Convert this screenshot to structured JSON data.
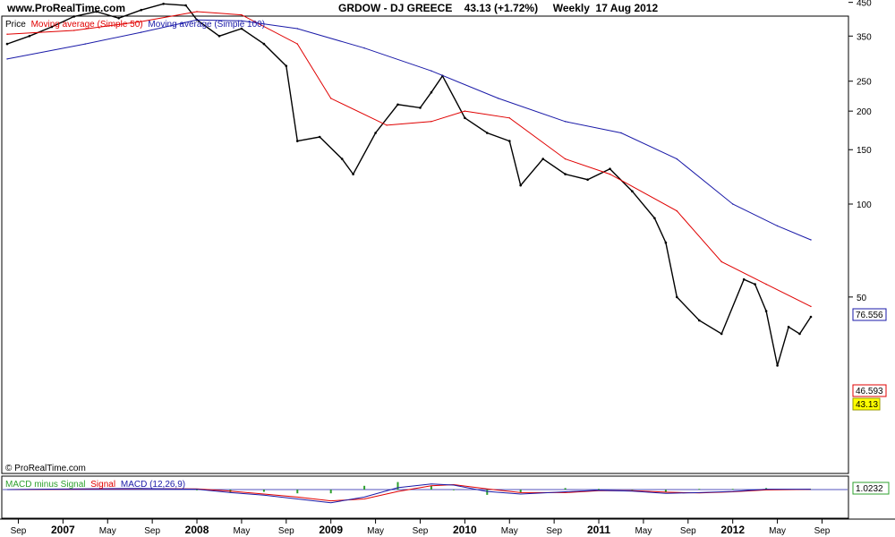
{
  "header": {
    "site": "www.ProRealTime.com",
    "title": "GRDOW - DJ GREECE    43.13 (+1.72%)     Weekly  17 Aug 2012"
  },
  "watermark": "© ProRealTime.com",
  "colors": {
    "price": "#000000",
    "ma50": "#e00000",
    "ma100": "#1a1aa8",
    "macd_line": "#1a1aa8",
    "signal_line": "#e00000",
    "macd_hist": "#2ea02e",
    "current_price_bg": "#ffff00"
  },
  "chart_data": {
    "type": "line",
    "scale": "log",
    "ylim": [
      30,
      480
    ],
    "y_ticks": [
      450,
      350,
      250,
      200,
      150,
      100,
      50
    ],
    "x_ticks": [
      "Sep",
      "2007",
      "May",
      "Sep",
      "2008",
      "May",
      "Sep",
      "2009",
      "May",
      "Sep",
      "2010",
      "May",
      "Sep",
      "2011",
      "May",
      "Sep",
      "2012",
      "May",
      "Sep"
    ],
    "legend": [
      "Price",
      "Moving average (Simple 50)",
      "Moving average (Simple 100)"
    ],
    "series": [
      {
        "name": "Price",
        "x": [
          "2006-08",
          "2006-10",
          "2006-12",
          "2007-02",
          "2007-04",
          "2007-06",
          "2007-08",
          "2007-10",
          "2007-12",
          "2008-01",
          "2008-03",
          "2008-05",
          "2008-07",
          "2008-09",
          "2008-10",
          "2008-12",
          "2009-02",
          "2009-03",
          "2009-05",
          "2009-07",
          "2009-09",
          "2009-10",
          "2009-11",
          "2010-01",
          "2010-03",
          "2010-05",
          "2010-06",
          "2010-08",
          "2010-10",
          "2010-12",
          "2011-02",
          "2011-04",
          "2011-06",
          "2011-07",
          "2011-08",
          "2011-10",
          "2011-12",
          "2012-02",
          "2012-03",
          "2012-04",
          "2012-05",
          "2012-06",
          "2012-07",
          "2012-08"
        ],
        "values": [
          330,
          350,
          375,
          405,
          420,
          400,
          425,
          445,
          440,
          395,
          350,
          370,
          330,
          280,
          160,
          165,
          140,
          125,
          170,
          210,
          205,
          230,
          260,
          190,
          170,
          160,
          115,
          140,
          125,
          120,
          130,
          110,
          90,
          75,
          50,
          42,
          38,
          57,
          55,
          45,
          30,
          40,
          38,
          43.13
        ]
      },
      {
        "name": "Moving average (Simple 50)",
        "x": [
          "2006-08",
          "2007-02",
          "2007-08",
          "2008-01",
          "2008-05",
          "2008-10",
          "2009-01",
          "2009-06",
          "2009-10",
          "2010-01",
          "2010-05",
          "2010-10",
          "2011-02",
          "2011-08",
          "2011-12",
          "2012-04",
          "2012-08"
        ],
        "values": [
          355,
          365,
          390,
          420,
          410,
          330,
          220,
          180,
          185,
          200,
          190,
          140,
          125,
          95,
          65,
          55,
          46.593
        ]
      },
      {
        "name": "Moving average (Simple 100)",
        "x": [
          "2006-08",
          "2007-03",
          "2007-08",
          "2008-01",
          "2008-05",
          "2008-10",
          "2009-04",
          "2009-10",
          "2010-04",
          "2010-10",
          "2011-03",
          "2011-08",
          "2012-01",
          "2012-05",
          "2012-08"
        ],
        "values": [
          295,
          330,
          360,
          395,
          392,
          370,
          320,
          270,
          220,
          185,
          170,
          140,
          100,
          85,
          76.556
        ]
      }
    ],
    "price_labels": {
      "ma100": "76.556",
      "ma50": "46.593",
      "price": "43.13"
    },
    "macd": {
      "legend": [
        "MACD minus Signal",
        "Signal",
        "MACD (12,26,9)"
      ],
      "current_value": "1.0232",
      "x": [
        "2006-08",
        "2007-02",
        "2007-08",
        "2008-01",
        "2008-04",
        "2008-07",
        "2008-10",
        "2009-01",
        "2009-04",
        "2009-07",
        "2009-10",
        "2009-12",
        "2010-03",
        "2010-06",
        "2010-10",
        "2011-01",
        "2011-04",
        "2011-07",
        "2011-10",
        "2012-01",
        "2012-04",
        "2012-08"
      ],
      "macd": [
        0,
        2,
        3,
        1,
        -8,
        -15,
        -25,
        -35,
        -20,
        5,
        15,
        12,
        -5,
        -12,
        -6,
        -2,
        -4,
        -10,
        -8,
        -5,
        1,
        1.0232
      ],
      "signal": [
        0,
        1,
        2.5,
        2,
        -4,
        -12,
        -20,
        -30,
        -25,
        -5,
        10,
        13,
        2,
        -8,
        -8,
        -3,
        -3,
        -7,
        -9,
        -6,
        -1,
        0.5
      ]
    }
  }
}
